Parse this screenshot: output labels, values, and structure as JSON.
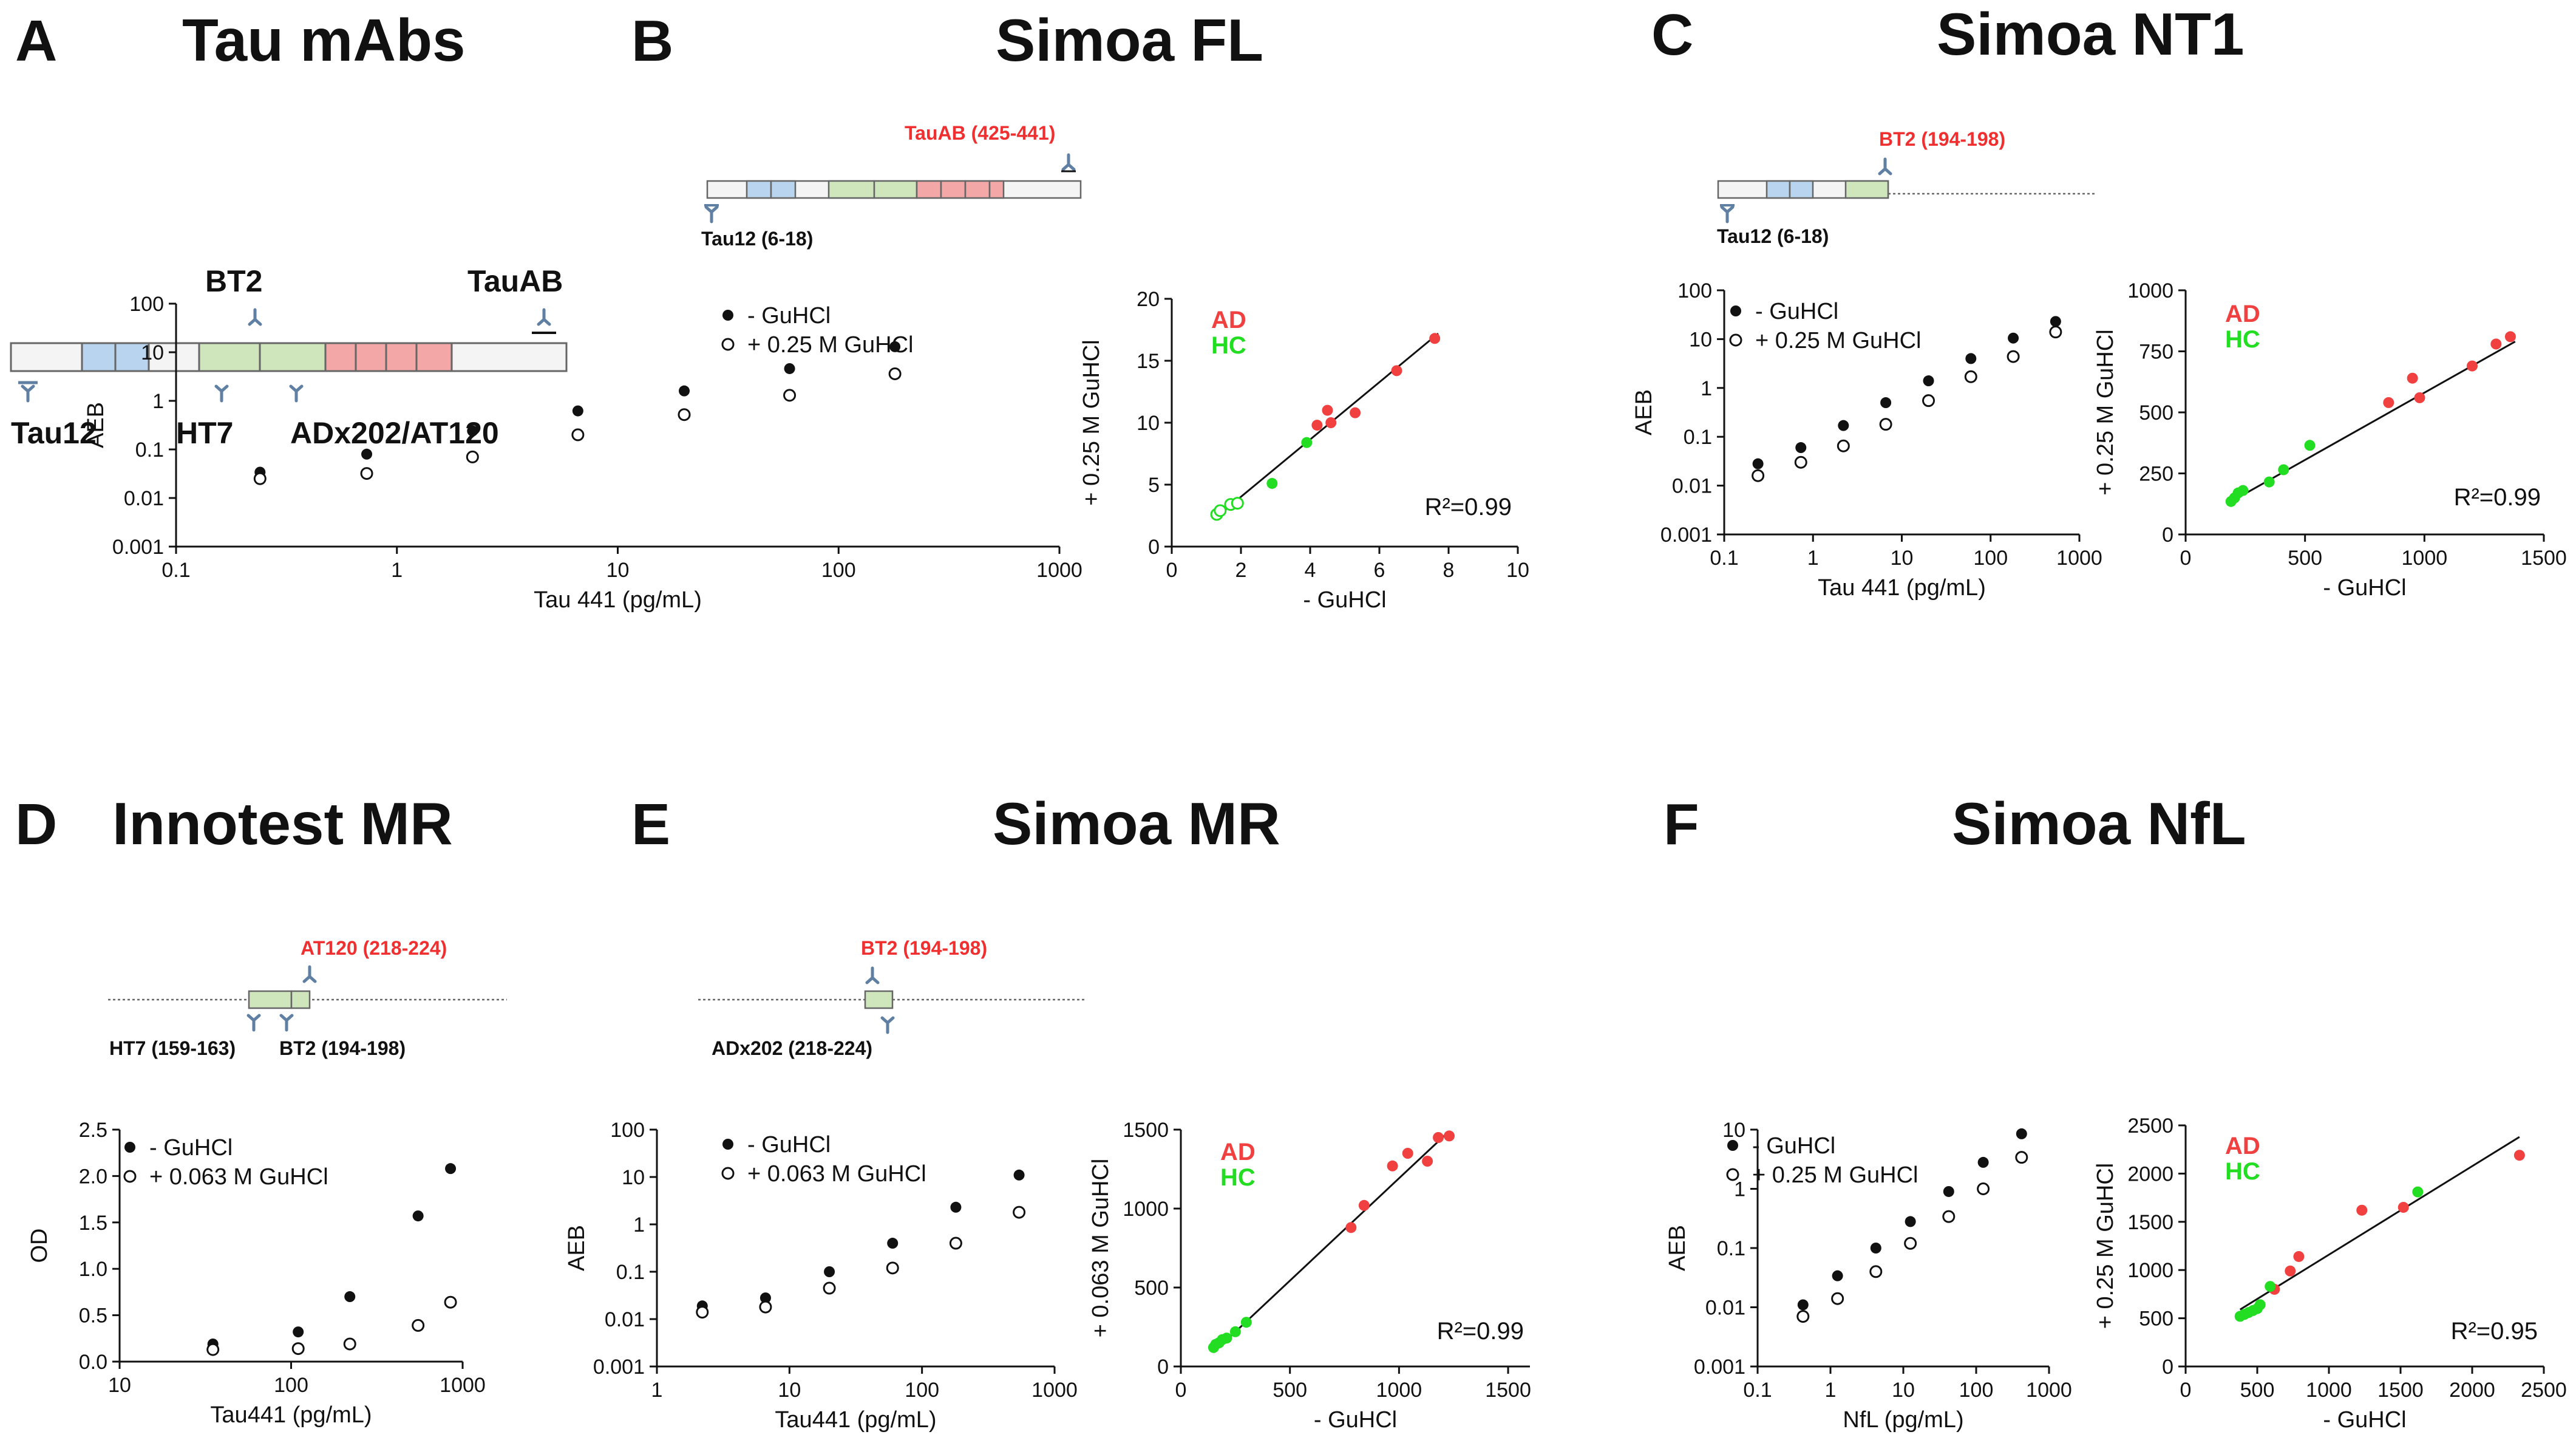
{
  "panels": {
    "A": {
      "label": "A",
      "title": "Tau mAbs",
      "antibodies": {
        "tau12": "Tau12",
        "ht7": "HT7",
        "bt2": "BT2",
        "adx": "ADx202/AT120",
        "tauab": "TauAB"
      }
    },
    "B": {
      "label": "B",
      "title": "Simoa FL",
      "ab_left": "Tau12 (6-18)",
      "ab_right": "TauAB (425-441)"
    },
    "C": {
      "label": "C",
      "title": "Simoa NT1",
      "ab_left": "Tau12 (6-18)",
      "ab_right": "BT2 (194-198)"
    },
    "D": {
      "label": "D",
      "title": "Innotest MR",
      "ab_left": "HT7 (159-163)",
      "ab_mid": "BT2 (194-198)",
      "ab_right": "AT120 (218-224)"
    },
    "E": {
      "label": "E",
      "title": "Simoa MR",
      "ab_left": "ADx202 (218-224)",
      "ab_right": "BT2 (194-198)"
    },
    "F": {
      "label": "F",
      "title": "Simoa NfL"
    }
  },
  "colors": {
    "ad": "#f04040",
    "hc": "#22dd22",
    "beta": "#b8d4ee",
    "green": "#cfe6bd",
    "red": "#f3a7a7",
    "icon": "#5f7fa3"
  },
  "chart_data": [
    {
      "id": "B-std",
      "type": "scatter",
      "xscale": "log",
      "yscale": "log",
      "xlim": [
        0.1,
        1000
      ],
      "ylim": [
        0.001,
        100
      ],
      "xticks": [
        "0.1",
        "1",
        "10",
        "100",
        "1000"
      ],
      "yticks": [
        "0.001",
        "0.01",
        "0.1",
        "1",
        "10",
        "100"
      ],
      "xlabel": "Tau 441 (pg/mL)",
      "ylabel": "AEB",
      "series": [
        {
          "name": "- GuHCl",
          "x": [
            0.24,
            0.73,
            2.2,
            6.6,
            20,
            60,
            180
          ],
          "y": [
            0.034,
            0.08,
            0.24,
            0.62,
            1.6,
            4.6,
            13
          ]
        },
        {
          "name": "+ 0.25 M GuHCl",
          "x": [
            0.24,
            0.73,
            2.2,
            6.6,
            20,
            60,
            180
          ],
          "y": [
            0.025,
            0.032,
            0.07,
            0.2,
            0.52,
            1.3,
            3.6
          ]
        }
      ]
    },
    {
      "id": "B-corr",
      "type": "scatter",
      "xlim": [
        0,
        10
      ],
      "ylim": [
        0,
        20
      ],
      "xticks": [
        "0",
        "2",
        "4",
        "6",
        "8",
        "10"
      ],
      "yticks": [
        "0",
        "5",
        "10",
        "15",
        "20"
      ],
      "xlabel": "- GuHCl",
      "ylabel": "+ 0.25 M GuHCl",
      "r2": "R²=0.99",
      "groups": [
        "AD",
        "HC"
      ],
      "fit": [
        [
          1.3,
          2.4
        ],
        [
          7.7,
          17.2
        ]
      ],
      "series": [
        {
          "name": "AD",
          "x": [
            4.2,
            4.5,
            4.6,
            5.3,
            6.5,
            7.6
          ],
          "y": [
            9.8,
            11.0,
            10.0,
            10.8,
            14.2,
            16.8
          ]
        },
        {
          "name": "HC",
          "x": [
            2.9,
            3.9
          ],
          "y": [
            5.1,
            8.4
          ]
        },
        {
          "name": "HC",
          "hollow": true,
          "x": [
            1.3,
            1.4,
            1.7,
            1.9
          ],
          "y": [
            2.6,
            2.9,
            3.4,
            3.5
          ]
        }
      ]
    },
    {
      "id": "C-std",
      "type": "scatter",
      "xscale": "log",
      "yscale": "log",
      "xlim": [
        0.1,
        1000
      ],
      "ylim": [
        0.001,
        100
      ],
      "xticks": [
        "0.1",
        "1",
        "10",
        "100",
        "1000"
      ],
      "yticks": [
        "0.001",
        "0.01",
        "0.1",
        "1",
        "10",
        "100"
      ],
      "xlabel": "Tau 441 (pg/mL)",
      "ylabel": "AEB",
      "series": [
        {
          "name": "- GuHCl",
          "x": [
            0.24,
            0.73,
            2.2,
            6.6,
            20,
            60,
            180,
            540
          ],
          "y": [
            0.028,
            0.06,
            0.17,
            0.5,
            1.4,
            4.0,
            10.5,
            23
          ]
        },
        {
          "name": "+ 0.25 M GuHCl",
          "x": [
            0.24,
            0.73,
            2.2,
            6.6,
            20,
            60,
            180,
            540
          ],
          "y": [
            0.016,
            0.03,
            0.065,
            0.18,
            0.55,
            1.7,
            4.4,
            14
          ]
        }
      ]
    },
    {
      "id": "C-corr",
      "type": "scatter",
      "xlim": [
        0,
        1500
      ],
      "ylim": [
        0,
        1000
      ],
      "xticks": [
        "0",
        "500",
        "1000",
        "1500"
      ],
      "yticks": [
        "0",
        "250",
        "500",
        "750",
        "1000"
      ],
      "xlabel": "- GuHCl",
      "ylabel": "+ 0.25 M GuHCl",
      "r2": "R²=0.99",
      "groups": [
        "AD",
        "HC"
      ],
      "fit": [
        [
          200,
          140
        ],
        [
          1380,
          790
        ]
      ],
      "series": [
        {
          "name": "AD",
          "x": [
            850,
            950,
            980,
            1200,
            1300,
            1360
          ],
          "y": [
            540,
            640,
            560,
            690,
            780,
            810
          ]
        },
        {
          "name": "HC",
          "x": [
            190,
            205,
            220,
            240,
            350,
            410,
            520
          ],
          "y": [
            135,
            150,
            170,
            180,
            215,
            265,
            365
          ]
        }
      ]
    },
    {
      "id": "D-std",
      "type": "scatter",
      "xscale": "log",
      "xlim": [
        10,
        1000
      ],
      "ylim": [
        0,
        2.5
      ],
      "xticks": [
        "10",
        "100",
        "1000"
      ],
      "yticks": [
        "0.0",
        "0.5",
        "1.0",
        "1.5",
        "2.0",
        "2.5"
      ],
      "xlabel": "Tau441 (pg/mL)",
      "ylabel": "OD",
      "series": [
        {
          "name": "- GuHCl",
          "x": [
            35,
            110,
            220,
            550,
            850
          ],
          "y": [
            0.19,
            0.32,
            0.7,
            1.57,
            2.08
          ]
        },
        {
          "name": "+ 0.063 M GuHCl",
          "x": [
            35,
            110,
            220,
            550,
            850
          ],
          "y": [
            0.13,
            0.14,
            0.19,
            0.39,
            0.64
          ]
        }
      ]
    },
    {
      "id": "E-std",
      "type": "scatter",
      "xscale": "log",
      "yscale": "log",
      "xlim": [
        1,
        1000
      ],
      "ylim": [
        0.001,
        100
      ],
      "xticks": [
        "1",
        "10",
        "100",
        "1000"
      ],
      "yticks": [
        "0.001",
        "0.01",
        "0.1",
        "1",
        "10",
        "100"
      ],
      "xlabel": "Tau441 (pg/mL)",
      "ylabel": "AEB",
      "series": [
        {
          "name": "- GuHCl",
          "x": [
            2.2,
            6.6,
            20,
            60,
            180,
            540
          ],
          "y": [
            0.019,
            0.028,
            0.1,
            0.4,
            2.3,
            11
          ]
        },
        {
          "name": "+ 0.063 M GuHCl",
          "x": [
            2.2,
            6.6,
            20,
            60,
            180,
            540
          ],
          "y": [
            0.014,
            0.018,
            0.045,
            0.12,
            0.4,
            1.8
          ]
        }
      ]
    },
    {
      "id": "E-corr",
      "type": "scatter",
      "xlim": [
        0,
        1600
      ],
      "ylim": [
        0,
        1500
      ],
      "xticks": [
        "0",
        "500",
        "1000",
        "1500"
      ],
      "xtick_values": [
        0,
        500,
        1000,
        1500
      ],
      "yticks": [
        "0",
        "500",
        "1000",
        "1500"
      ],
      "xlabel": "- GuHCl",
      "ylabel": "+ 0.063 M GuHCl",
      "r2": "R²=0.99",
      "groups": [
        "AD",
        "HC"
      ],
      "fit": [
        [
          150,
          90
        ],
        [
          1230,
          1490
        ]
      ],
      "series": [
        {
          "name": "AD",
          "x": [
            780,
            840,
            970,
            1040,
            1130,
            1180,
            1230
          ],
          "y": [
            880,
            1020,
            1270,
            1350,
            1300,
            1450,
            1460
          ]
        },
        {
          "name": "HC",
          "x": [
            150,
            160,
            175,
            190,
            210,
            250,
            300
          ],
          "y": [
            120,
            140,
            150,
            170,
            180,
            220,
            280
          ]
        }
      ]
    },
    {
      "id": "F-std",
      "type": "scatter",
      "xscale": "log",
      "yscale": "log",
      "xlim": [
        0.1,
        1000
      ],
      "ylim": [
        0.001,
        10
      ],
      "xticks": [
        "0.1",
        "1",
        "10",
        "100",
        "1000"
      ],
      "yticks": [
        "0.001",
        "0.01",
        "0.1",
        "1",
        "10"
      ],
      "xlabel": "NfL (pg/mL)",
      "ylabel": "AEB",
      "series": [
        {
          "name": "- GuHCl",
          "x": [
            0.42,
            1.25,
            4.2,
            12.5,
            42,
            125,
            420
          ],
          "y": [
            0.011,
            0.034,
            0.1,
            0.28,
            0.9,
            2.8,
            8.5
          ]
        },
        {
          "name": "+ 0.25 M GuHCl",
          "x": [
            0.42,
            1.25,
            4.2,
            12.5,
            42,
            125,
            420
          ],
          "y": [
            0.007,
            0.014,
            0.04,
            0.12,
            0.34,
            1.0,
            3.4
          ]
        }
      ]
    },
    {
      "id": "F-corr",
      "type": "scatter",
      "xlim": [
        0,
        2500
      ],
      "ylim": [
        0,
        2500
      ],
      "xticks": [
        "0",
        "500",
        "1000",
        "1500",
        "2000",
        "2500"
      ],
      "yticks": [
        "0",
        "500",
        "1000",
        "1500",
        "2000",
        "2500"
      ],
      "xlabel": "- GuHCl",
      "ylabel": "+ 0.25 M GuHCl",
      "r2": "R²=0.95",
      "groups": [
        "AD",
        "HC"
      ],
      "fit": [
        [
          380,
          590
        ],
        [
          2330,
          2380
        ]
      ],
      "series": [
        {
          "name": "AD",
          "x": [
            620,
            730,
            790,
            1230,
            1520,
            2330
          ],
          "y": [
            800,
            990,
            1140,
            1620,
            1650,
            2190
          ]
        },
        {
          "name": "HC",
          "x": [
            380,
            410,
            440,
            470,
            500,
            520,
            590,
            1620
          ],
          "y": [
            520,
            540,
            560,
            580,
            600,
            640,
            830,
            1810
          ]
        }
      ]
    }
  ]
}
